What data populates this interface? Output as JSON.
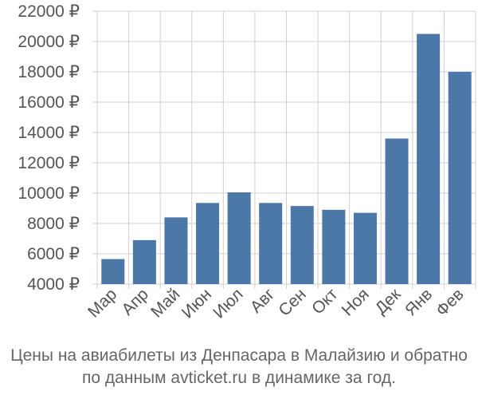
{
  "chart_data": {
    "type": "bar",
    "categories": [
      "Мар",
      "Апр",
      "Май",
      "Июн",
      "Июл",
      "Авг",
      "Сен",
      "Окт",
      "Ноя",
      "Дек",
      "Янв",
      "Фев"
    ],
    "values": [
      5650,
      6900,
      8400,
      9350,
      10050,
      9350,
      9150,
      8900,
      8700,
      13600,
      20500,
      18000
    ],
    "y_ticks": [
      "22000 ₽",
      "20000 ₽",
      "18000 ₽",
      "16000 ₽",
      "14000 ₽",
      "12000 ₽",
      "10000 ₽",
      "8000 ₽",
      "6000 ₽",
      "4000 ₽"
    ],
    "y_tick_values": [
      22000,
      20000,
      18000,
      16000,
      14000,
      12000,
      10000,
      8000,
      6000,
      4000
    ],
    "ylim": [
      4000,
      22000
    ],
    "grid": true,
    "bar_color": "#4c78a8",
    "caption_line1": "Цены на авиабилеты из Денпасара в Малайзию и обратно",
    "caption_line2": "по данным avticket.ru в динамике за год."
  }
}
